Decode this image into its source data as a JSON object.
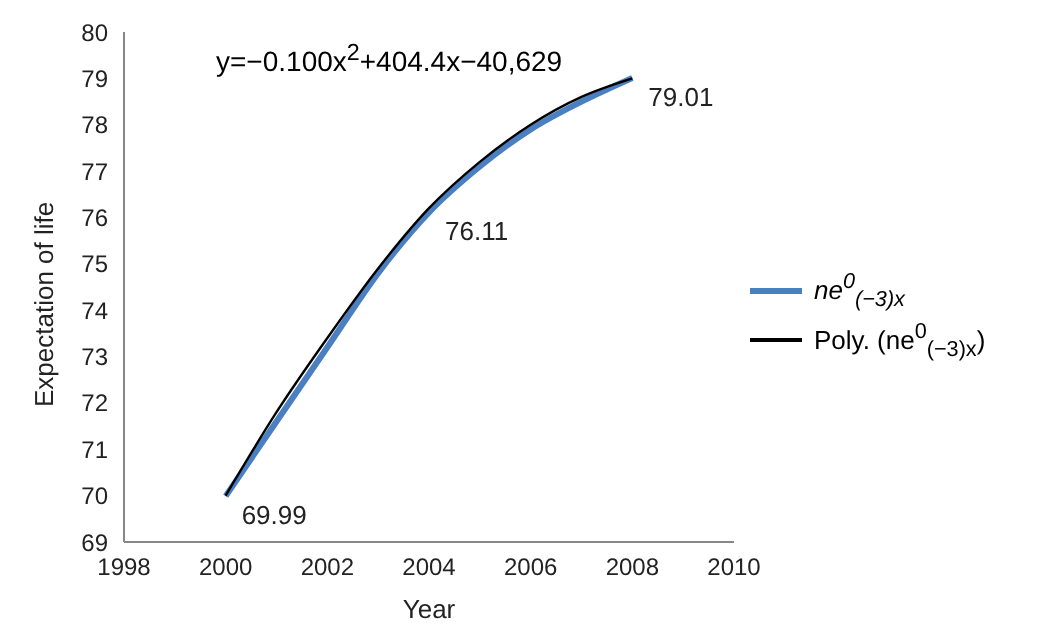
{
  "chart_data": {
    "type": "line",
    "xlabel": "Year",
    "ylabel": "Expectation of life",
    "x": [
      2000,
      2001,
      2002,
      2003,
      2004,
      2005,
      2006,
      2007,
      2008
    ],
    "series": [
      {
        "name": "ne$^{0}$$_{(−3)x}$",
        "color": "#4a7fc1",
        "values": [
          69.99,
          71.6,
          73.2,
          74.8,
          76.11,
          77.1,
          77.9,
          78.5,
          79.01
        ],
        "value_labels": [
          "69.99",
          null,
          null,
          null,
          "76.11",
          null,
          null,
          null,
          "79.01"
        ]
      },
      {
        "name": "Poly. (ne$^{0}$$_{(−3)x}$)",
        "color": "#000000",
        "values": [
          70.0,
          71.8,
          73.4,
          74.9,
          76.2,
          77.2,
          78.0,
          78.6,
          79.0
        ]
      }
    ],
    "xlim": [
      1998,
      2010
    ],
    "xticks": [
      1998,
      2000,
      2002,
      2004,
      2006,
      2008,
      2010
    ],
    "ylim": [
      69,
      80
    ],
    "yticks": [
      69,
      70,
      71,
      72,
      73,
      74,
      75,
      76,
      77,
      78,
      79,
      80
    ],
    "grid": false,
    "legend": "right",
    "marker": "none",
    "line_style": "solid",
    "annotations": [
      "y=−0.100x$^{2}$+404.4x−40,629"
    ]
  }
}
